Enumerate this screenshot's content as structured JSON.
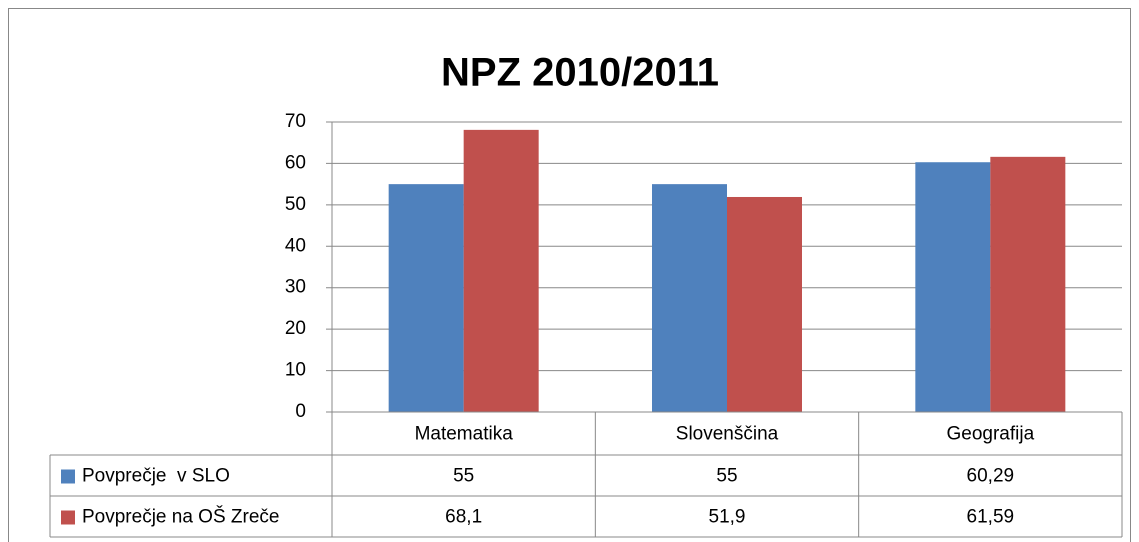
{
  "chart_data": {
    "type": "bar",
    "title": "NPZ 2010/2011",
    "categories": [
      "Matematika",
      "Slovenščina",
      "Geografija"
    ],
    "series": [
      {
        "name": "Povprečje  v SLO",
        "color": "#4f81bd",
        "values": [
          55,
          55,
          60.29
        ],
        "value_labels": [
          "55",
          "55",
          "60,29"
        ]
      },
      {
        "name": "Povprečje na OŠ Zreče",
        "color": "#c0504d",
        "values": [
          68.1,
          51.9,
          61.59
        ],
        "value_labels": [
          "68,1",
          "51,9",
          "61,59"
        ]
      }
    ],
    "ylim": [
      0,
      70
    ],
    "yticks": [
      0,
      10,
      20,
      30,
      40,
      50,
      60,
      70
    ],
    "grid": true,
    "data_table": true
  }
}
